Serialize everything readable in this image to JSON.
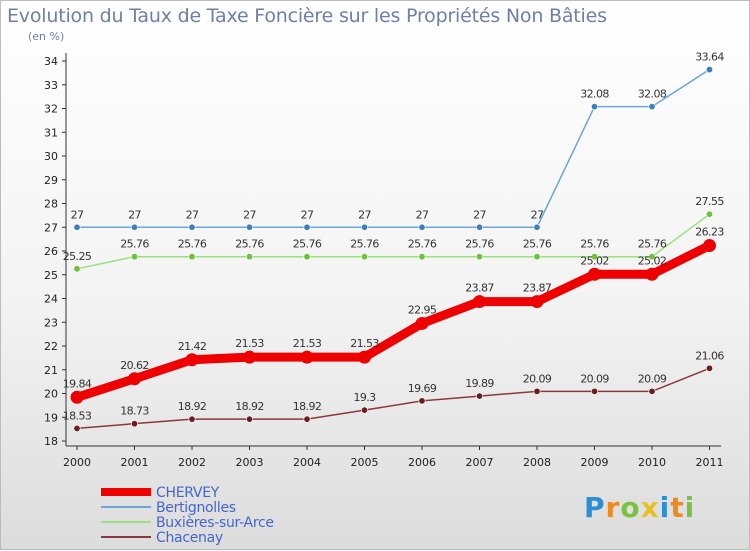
{
  "title": "Evolution du Taux de Taxe Foncière sur les Propriétés Non Bâties",
  "unit": "(en %)",
  "logo": {
    "letters": [
      {
        "ch": "P",
        "color": "#2a8fd6"
      },
      {
        "ch": "r",
        "color": "#f08a1c"
      },
      {
        "ch": "o",
        "color": "#7cc242"
      },
      {
        "ch": "x",
        "color": "#e8c12a"
      },
      {
        "ch": "i",
        "color": "#2a8fd6"
      },
      {
        "ch": "t",
        "color": "#f08a1c"
      },
      {
        "ch": "i",
        "color": "#7cc242"
      }
    ]
  },
  "chart_data": {
    "type": "line",
    "title": "Evolution du Taux de Taxe Foncière sur les Propriétés Non Bâties",
    "ylabel": "(en %)",
    "xlabel": "",
    "ylim": [
      18,
      34
    ],
    "yticks": [
      18,
      19,
      20,
      21,
      22,
      23,
      24,
      25,
      26,
      27,
      28,
      29,
      30,
      31,
      32,
      33,
      34
    ],
    "x": [
      "2000",
      "2001",
      "2002",
      "2003",
      "2004",
      "2005",
      "2006",
      "2007",
      "2008",
      "2009",
      "2010",
      "2011"
    ],
    "legend_position": "bottom-left",
    "series": [
      {
        "name": "CHERVEY",
        "color": "#ee0000",
        "emphasis": true,
        "values": [
          19.84,
          20.62,
          21.42,
          21.53,
          21.53,
          21.53,
          22.95,
          23.87,
          23.87,
          25.02,
          25.02,
          26.23
        ],
        "labels": [
          "19.84",
          "20.62",
          "21.42",
          "21.53",
          "21.53",
          "21.53",
          "22.95",
          "23.87",
          "23.87",
          "25.02",
          "25.02",
          "26.23"
        ]
      },
      {
        "name": "Bertignolles",
        "color": "#6aa6d8",
        "marker": "#3d7ec0",
        "values": [
          27,
          27,
          27,
          27,
          27,
          27,
          27,
          27,
          27,
          32.08,
          32.08,
          33.64
        ],
        "labels": [
          "27",
          "27",
          "27",
          "27",
          "27",
          "27",
          "27",
          "27",
          "27",
          "32.08",
          "32.08",
          "33.64"
        ]
      },
      {
        "name": "Buxières-sur-Arce",
        "color": "#9be07a",
        "marker": "#6cc23a",
        "values": [
          25.25,
          25.76,
          25.76,
          25.76,
          25.76,
          25.76,
          25.76,
          25.76,
          25.76,
          25.76,
          25.76,
          27.55
        ],
        "labels": [
          "25.25",
          "25.76",
          "25.76",
          "25.76",
          "25.76",
          "25.76",
          "25.76",
          "25.76",
          "25.76",
          "25.76",
          "25.76",
          "27.55"
        ]
      },
      {
        "name": "Chacenay",
        "color": "#8a3a3a",
        "marker": "#6a1e1e",
        "values": [
          18.53,
          18.73,
          18.92,
          18.92,
          18.92,
          19.3,
          19.69,
          19.89,
          20.09,
          20.09,
          20.09,
          21.06
        ],
        "labels": [
          "18.53",
          "18.73",
          "18.92",
          "18.92",
          "18.92",
          "19.3",
          "19.69",
          "19.89",
          "20.09",
          "20.09",
          "20.09",
          "21.06"
        ]
      }
    ]
  }
}
